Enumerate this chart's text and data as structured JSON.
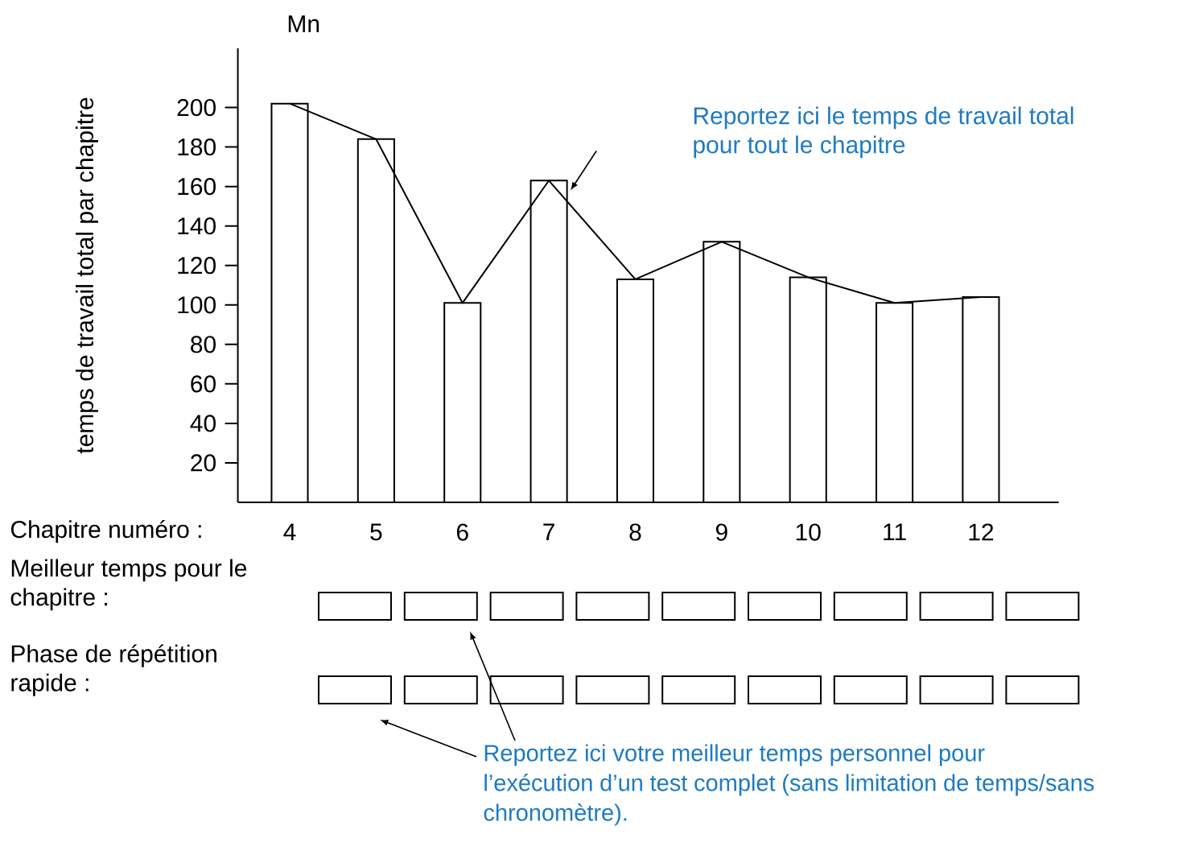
{
  "chart_data": {
    "type": "bar",
    "ylabel": "temps de travail total par chapitre",
    "xlabel": "Chapitre numéro :",
    "categories": [
      "4",
      "5",
      "6",
      "7",
      "8",
      "9",
      "10",
      "11",
      "12"
    ],
    "series": [
      {
        "color": "#ffffff",
        "values": [
          202,
          184,
          101,
          163,
          113,
          132,
          114,
          101,
          104
        ]
      },
      {
        "type": "line",
        "color": "#000000",
        "values": [
          202,
          184,
          101,
          163,
          113,
          132,
          114,
          101,
          104
        ]
      }
    ],
    "ylim": [
      0,
      230
    ],
    "yticks": [
      20,
      40,
      60,
      80,
      100,
      120,
      140,
      160,
      180,
      200
    ],
    "grid": false,
    "annotations": [
      "Mn",
      "Reportez ici le temps de travail total pour tout le chapitre",
      "Meilleur temps pour le chapitre :",
      "Phase de répétition rapide :",
      "Reportez ici votre meilleur temps personnel pour l’exécution d’un test complet (sans limitation de temps/sans chronomètre)."
    ]
  }
}
